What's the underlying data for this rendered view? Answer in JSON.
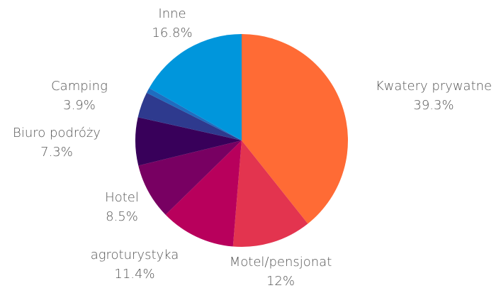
{
  "chart_data": {
    "type": "pie",
    "categories": [
      "Kwatery prywatne",
      "Motel/pensjonat",
      "agroturystyka",
      "Hotel",
      "Biuro podróży",
      "Camping",
      null,
      "Inne"
    ],
    "values": [
      39.3,
      12,
      11.4,
      8.5,
      7.3,
      3.9,
      0.8,
      16.8
    ],
    "value_labels": [
      "39.3%",
      "12%",
      "11.4%",
      "8.5%",
      "7.3%",
      "3.9%",
      null,
      "16.8%"
    ],
    "colors": [
      "#ff6b35",
      "#e3344f",
      "#b8005c",
      "#780062",
      "#38005a",
      "#2e3a8e",
      "#1f6dbf",
      "#0096dc"
    ]
  }
}
